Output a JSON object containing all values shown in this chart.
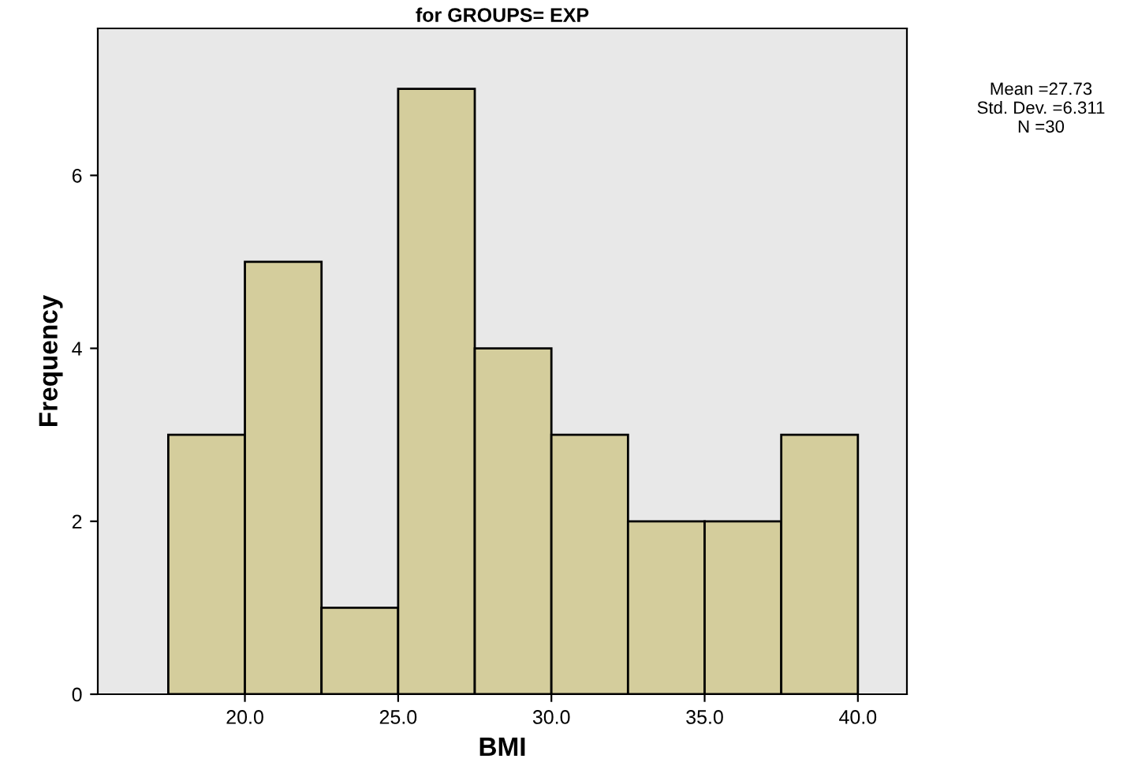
{
  "chart_data": {
    "type": "histogram",
    "title": "for GROUPS= EXP",
    "xlabel": "BMI",
    "ylabel": "Frequency",
    "bins": [
      17.5,
      20,
      22.5,
      25,
      27.5,
      30,
      32.5,
      35,
      37.5,
      40
    ],
    "values": [
      3,
      5,
      1,
      7,
      4,
      3,
      2,
      2,
      3
    ],
    "color": "#d4cd9c",
    "xlim": [
      15.2,
      41.6
    ],
    "ylim": [
      0,
      7.7
    ],
    "xticks": [
      {
        "value": 20,
        "label": "20.0"
      },
      {
        "value": 25,
        "label": "25.0"
      },
      {
        "value": 30,
        "label": "30.0"
      },
      {
        "value": 35,
        "label": "35.0"
      },
      {
        "value": 40,
        "label": "40.0"
      }
    ],
    "yticks": [
      0,
      2,
      4,
      6
    ],
    "annotations": [
      "Mean =27.73\nStd. Dev. =6.311\nN =30"
    ],
    "grid": false
  }
}
